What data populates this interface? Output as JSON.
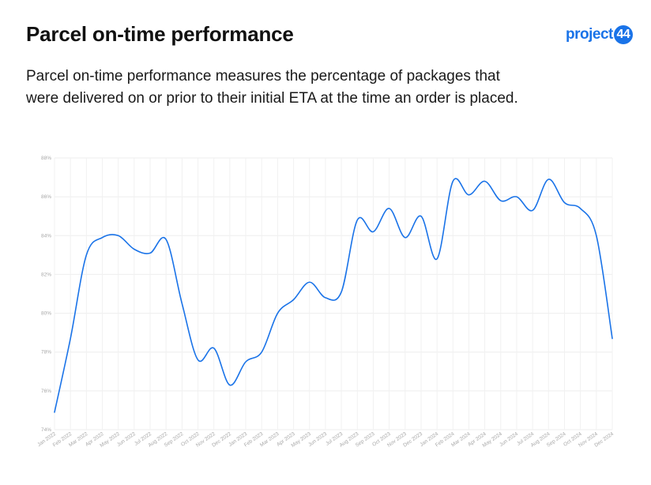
{
  "header": {
    "title": "Parcel on-time performance",
    "description": "Parcel on-time performance measures the percentage of packages that were delivered on or prior to their initial ETA at the time an order is placed."
  },
  "logo": {
    "text": "project",
    "badge": "44",
    "color": "#1a73e8"
  },
  "chart_data": {
    "type": "line",
    "title": "",
    "xlabel": "",
    "ylabel": "",
    "ylim": [
      74,
      88
    ],
    "yticks": [
      74,
      76,
      78,
      80,
      82,
      84,
      86,
      88
    ],
    "ytick_labels": [
      "74%",
      "76%",
      "78%",
      "80%",
      "82%",
      "84%",
      "86%",
      "88%"
    ],
    "grid": true,
    "line_color": "#1a73e8",
    "categories": [
      "Jan 2022",
      "Feb 2022",
      "Mar 2022",
      "Apr 2022",
      "May 2022",
      "Jun 2022",
      "Jul 2022",
      "Aug 2022",
      "Sep 2022",
      "Oct 2022",
      "Nov 2022",
      "Dec 2022",
      "Jan 2023",
      "Feb 2023",
      "Mar 2023",
      "Apr 2023",
      "May 2023",
      "Jun 2023",
      "Jul 2023",
      "Aug 2023",
      "Sep 2023",
      "Oct 2023",
      "Nov 2023",
      "Dec 2023",
      "Jan 2024",
      "Feb 2024",
      "Mar 2024",
      "Apr 2024",
      "May 2024",
      "Jun 2024",
      "Jul 2024",
      "Aug 2024",
      "Sep 2024",
      "Oct 2024",
      "Nov 2024",
      "Dec 2024"
    ],
    "series": [
      {
        "values": [
          74.9,
          78.7,
          83.0,
          83.9,
          84.0,
          83.3,
          83.1,
          83.8,
          80.5,
          77.6,
          78.2,
          76.3,
          77.5,
          78.0,
          80.0,
          80.7,
          81.6,
          80.8,
          81.1,
          84.8,
          84.2,
          85.4,
          83.9,
          85.0,
          82.8,
          86.8,
          86.1,
          86.8,
          85.8,
          86.0,
          85.3,
          86.9,
          85.7,
          85.4,
          84.0,
          78.7
        ]
      }
    ]
  }
}
